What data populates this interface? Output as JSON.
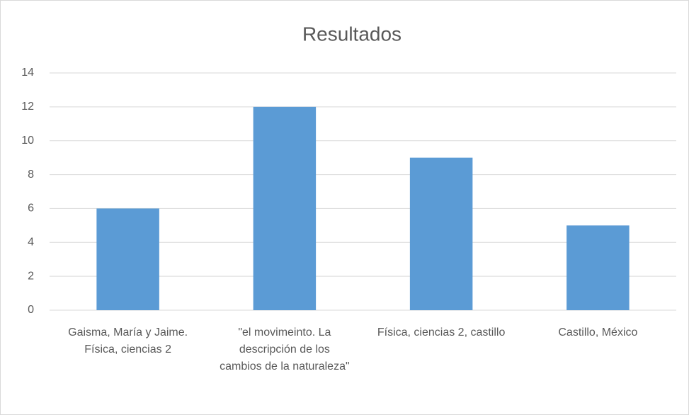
{
  "chart_data": {
    "type": "bar",
    "title": "Resultados",
    "categories": [
      "Gaisma, María y Jaime. Física, ciencias 2",
      "\"el movimeinto. La descripción de los cambios de la naturaleza\"",
      "Física, ciencias 2, castillo",
      "Castillo, México"
    ],
    "values": [
      6,
      12,
      9,
      5
    ],
    "color": "#5b9bd5",
    "ylim": [
      0,
      14
    ],
    "yticks": [
      0,
      2,
      4,
      6,
      8,
      10,
      12,
      14
    ],
    "grid": true
  }
}
